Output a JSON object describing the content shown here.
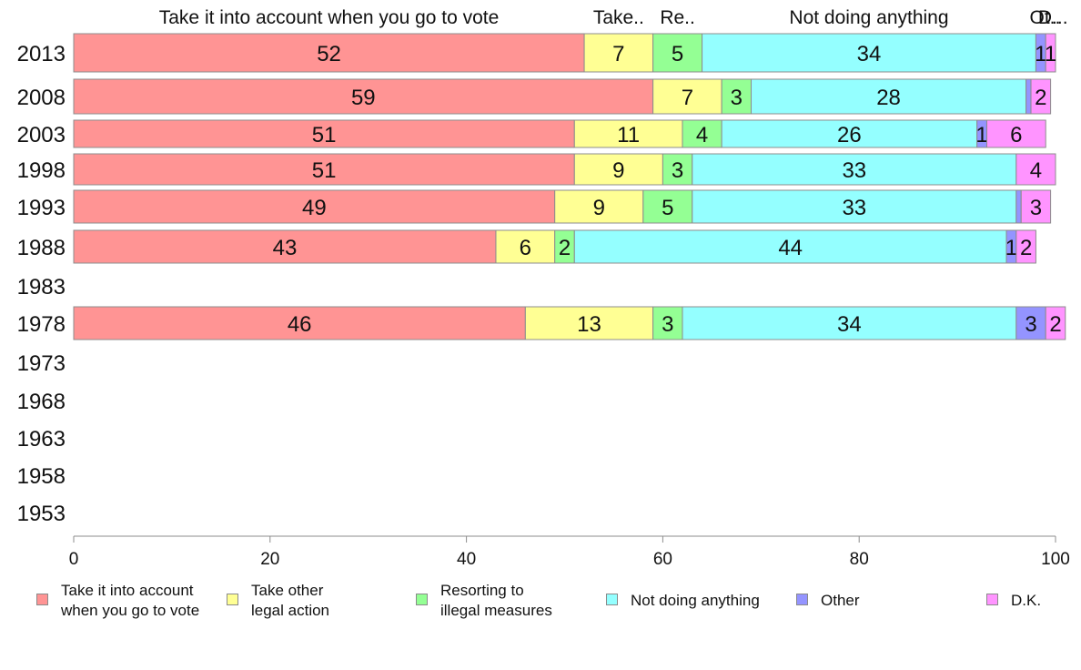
{
  "chart_data": {
    "type": "bar",
    "orientation": "horizontal",
    "stacked": true,
    "categories": [
      "2013",
      "2008",
      "2003",
      "1998",
      "1993",
      "1988",
      "1983",
      "1978",
      "1973",
      "1968",
      "1963",
      "1958",
      "1953"
    ],
    "series": [
      {
        "name": "Take it into account\nwhen you go to vote",
        "color": "#ff9494",
        "values": [
          52,
          59,
          51,
          51,
          49,
          43,
          null,
          46,
          null,
          null,
          null,
          null,
          null
        ]
      },
      {
        "name": "Take other\nlegal action",
        "color": "#ffff94",
        "values": [
          7,
          7,
          11,
          9,
          9,
          6,
          null,
          13,
          null,
          null,
          null,
          null,
          null
        ]
      },
      {
        "name": "Resorting to\nillegal measures",
        "color": "#94ff94",
        "values": [
          5,
          3,
          4,
          3,
          5,
          2,
          null,
          3,
          null,
          null,
          null,
          null,
          null
        ]
      },
      {
        "name": "Not doing anything",
        "color": "#94ffff",
        "values": [
          34,
          28,
          26,
          33,
          33,
          44,
          null,
          34,
          null,
          null,
          null,
          null,
          null
        ]
      },
      {
        "name": "Other",
        "color": "#9494ff",
        "values": [
          1,
          0.5,
          1,
          0,
          0.5,
          1,
          null,
          3,
          null,
          null,
          null,
          null,
          null
        ]
      },
      {
        "name": "D.K.",
        "color": "#ff94ff",
        "values": [
          1,
          2,
          6,
          4,
          3,
          2,
          null,
          2,
          null,
          null,
          null,
          null,
          null
        ]
      }
    ],
    "data_labels": [
      [
        "52",
        "7",
        "5",
        "34",
        "1",
        "1"
      ],
      [
        "59",
        "7",
        "3",
        "28",
        "",
        "2"
      ],
      [
        "51",
        "11",
        "4",
        "26",
        "1",
        "6"
      ],
      [
        "51",
        "9",
        "3",
        "33",
        "",
        "4"
      ],
      [
        "49",
        "9",
        "5",
        "33",
        "",
        "3"
      ],
      [
        "43",
        "6",
        "2",
        "44",
        "1",
        "2"
      ],
      [],
      [
        "46",
        "13",
        "3",
        "34",
        "3",
        "2"
      ],
      [],
      [],
      [],
      [],
      []
    ],
    "top_labels": [
      "Take it into account when you go to vote",
      "Take..",
      "Re..",
      "Not doing anything",
      "Ot..",
      "D..."
    ],
    "xticks": [
      "0",
      "20",
      "40",
      "60",
      "80",
      "100"
    ],
    "xlim": [
      0,
      100
    ],
    "title": "",
    "xlabel": "",
    "ylabel": "",
    "grid": false,
    "legend_position": "bottom"
  }
}
